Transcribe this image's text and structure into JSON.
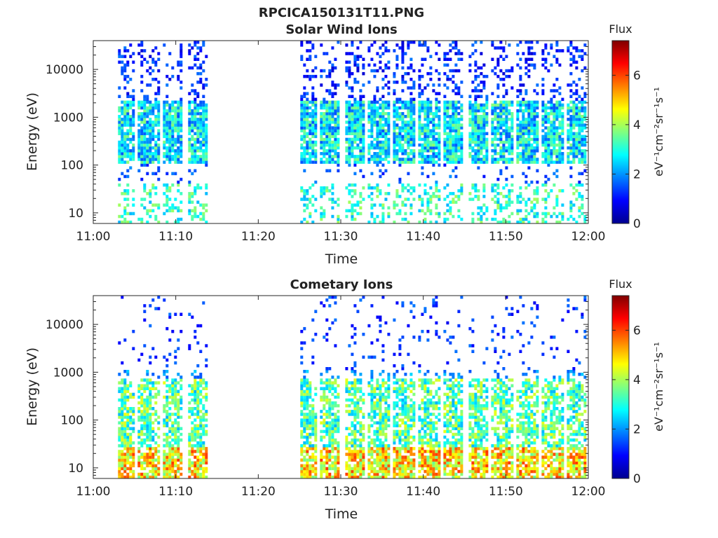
{
  "figure_title": "RPCICA150131T11.PNG",
  "chart_data": [
    {
      "type": "heatmap",
      "title": "Solar Wind Ions",
      "xlabel": "Time",
      "ylabel": "Energy (eV)",
      "x_ticks": [
        "11:00",
        "11:10",
        "11:20",
        "11:30",
        "11:40",
        "11:50",
        "12:00"
      ],
      "xlim": [
        "11:00",
        "12:00"
      ],
      "y_scale": "log",
      "y_ticks": [
        "10",
        "100",
        "1000",
        "10000"
      ],
      "ylim": [
        6,
        40000
      ],
      "colorbar": {
        "title": "Flux",
        "label": "eV⁻¹cm⁻²sr⁻¹s⁻¹",
        "ticks": [
          "0",
          "2",
          "4",
          "6"
        ],
        "range": [
          0,
          7.4
        ]
      },
      "data_gap": [
        "11:15",
        "11:25"
      ],
      "active_bursts_minutes": [
        3.5,
        6.5,
        9.5,
        12.5,
        25.5,
        28.5,
        31.5,
        34.5,
        37.5,
        40.5,
        43.5,
        46.5,
        49.5,
        52.5,
        55.5,
        58.5
      ],
      "dominant_energy_band_eV": [
        100,
        2000
      ],
      "typical_flux": [
        1,
        4
      ]
    },
    {
      "type": "heatmap",
      "title": "Cometary Ions",
      "xlabel": "Time",
      "ylabel": "Energy (eV)",
      "x_ticks": [
        "11:00",
        "11:10",
        "11:20",
        "11:30",
        "11:40",
        "11:50",
        "12:00"
      ],
      "xlim": [
        "11:00",
        "12:00"
      ],
      "y_scale": "log",
      "y_ticks": [
        "10",
        "100",
        "1000",
        "10000"
      ],
      "ylim": [
        6,
        40000
      ],
      "colorbar": {
        "title": "Flux",
        "label": "eV⁻¹cm⁻²sr⁻¹s⁻¹",
        "ticks": [
          "0",
          "2",
          "4",
          "6"
        ],
        "range": [
          0,
          7.4
        ]
      },
      "data_gap": [
        "11:15",
        "11:25"
      ],
      "active_bursts_minutes": [
        3.5,
        6.5,
        9.5,
        12.5,
        25.5,
        28.5,
        31.5,
        34.5,
        37.5,
        40.5,
        43.5,
        46.5,
        49.5,
        52.5,
        55.5,
        58.5
      ],
      "dominant_energy_band_eV": [
        6,
        1000
      ],
      "typical_flux": [
        3,
        6
      ]
    }
  ]
}
